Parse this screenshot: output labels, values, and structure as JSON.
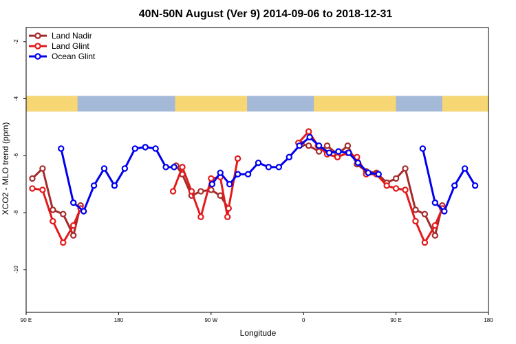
{
  "chart_data": {
    "type": "line",
    "title": "40N-50N August (Ver 9)   2014-09-06 to 2018-12-31",
    "xlabel": "Longitude",
    "ylabel": "XCO2 - MLO trend (ppm)",
    "x_ticks": [
      {
        "value": 90,
        "label": "90 E"
      },
      {
        "value": 180,
        "label": "180"
      },
      {
        "value": 270,
        "label": "90 W"
      },
      {
        "value": 360,
        "label": "0"
      },
      {
        "value": 450,
        "label": "90 E"
      },
      {
        "value": 540,
        "label": "180"
      }
    ],
    "y_ticks": [
      {
        "value": -2,
        "label": "-2"
      },
      {
        "value": -4,
        "label": "-4"
      },
      {
        "value": -6,
        "label": "-6"
      },
      {
        "value": -8,
        "label": "-8"
      },
      {
        "value": -10,
        "label": "-10"
      }
    ],
    "xlim": [
      90,
      540
    ],
    "ylim": [
      -11.5,
      -1.5
    ],
    "legend_position": "top-left",
    "map_strip": {
      "y_top": -3.9,
      "y_bottom": -4.45,
      "land_color": "#f7d774",
      "ocean_color": "#a4b8d8",
      "land_ranges": [
        [
          90,
          140
        ],
        [
          235,
          305
        ],
        [
          370,
          450
        ],
        [
          495,
          540
        ]
      ]
    },
    "series": [
      {
        "name": "Land Nadir",
        "color": "#a52a2a",
        "points": [
          [
            96,
            -6.8
          ],
          [
            106,
            -6.45
          ],
          [
            116,
            -7.9
          ],
          [
            126,
            -8.05
          ],
          [
            136,
            -8.8
          ],
          [
            143,
            -7.75
          ],
          [
            null,
            null
          ],
          [
            236,
            -6.35
          ],
          [
            242,
            -6.65
          ],
          [
            251,
            -7.4
          ],
          [
            260,
            -7.25
          ],
          [
            270,
            -7.2
          ],
          [
            279,
            -7.4
          ],
          [
            287,
            -7.85
          ],
          [
            null,
            null
          ],
          [
            358,
            -5.6
          ],
          [
            365,
            -5.65
          ],
          [
            375,
            -5.85
          ],
          [
            383,
            -5.65
          ],
          [
            393,
            -5.95
          ],
          [
            403,
            -5.65
          ],
          [
            412,
            -6.3
          ],
          [
            421,
            -6.55
          ],
          [
            431,
            -6.6
          ],
          [
            441,
            -6.95
          ],
          [
            450,
            -6.8
          ],
          [
            459,
            -6.45
          ],
          [
            469,
            -7.9
          ],
          [
            478,
            -8.05
          ],
          [
            488,
            -8.8
          ],
          [
            495,
            -7.75
          ]
        ]
      },
      {
        "name": "Land Glint",
        "color": "#e31a1c",
        "points": [
          [
            96,
            -7.15
          ],
          [
            106,
            -7.2
          ],
          [
            116,
            -8.3
          ],
          [
            126,
            -9.05
          ],
          [
            136,
            -8.45
          ],
          [
            143,
            -7.85
          ],
          [
            null,
            null
          ],
          [
            233,
            -7.25
          ],
          [
            242,
            -6.4
          ],
          [
            251,
            -7.25
          ],
          [
            260,
            -8.15
          ],
          [
            270,
            -6.8
          ],
          [
            279,
            -6.75
          ],
          [
            286,
            -8.15
          ],
          [
            287,
            -7.85
          ],
          [
            296,
            -6.1
          ],
          [
            null,
            null
          ],
          [
            355,
            -5.55
          ],
          [
            365,
            -5.15
          ],
          [
            374,
            -5.65
          ],
          [
            383,
            -5.95
          ],
          [
            393,
            -6.05
          ],
          [
            403,
            -5.9
          ],
          [
            412,
            -6.05
          ],
          [
            421,
            -6.65
          ],
          [
            431,
            -6.65
          ],
          [
            441,
            -7.05
          ],
          [
            450,
            -7.15
          ],
          [
            459,
            -7.2
          ],
          [
            469,
            -8.3
          ],
          [
            478,
            -9.05
          ],
          [
            488,
            -8.45
          ],
          [
            495,
            -7.85
          ]
        ]
      },
      {
        "name": "Ocean Glint",
        "color": "#0000ee",
        "points": [
          [
            124,
            -5.75
          ],
          [
            136,
            -7.65
          ],
          [
            146,
            -7.95
          ],
          [
            156,
            -7.05
          ],
          [
            166,
            -6.45
          ],
          [
            176,
            -7.05
          ],
          [
            186,
            -6.45
          ],
          [
            196,
            -5.75
          ],
          [
            206,
            -5.7
          ],
          [
            216,
            -5.75
          ],
          [
            226,
            -6.4
          ],
          [
            234,
            -6.4
          ],
          [
            null,
            null
          ],
          [
            271,
            -7.0
          ],
          [
            279,
            -6.6
          ],
          [
            288,
            -7.0
          ],
          [
            296,
            -6.65
          ],
          [
            306,
            -6.65
          ],
          [
            316,
            -6.25
          ],
          [
            326,
            -6.4
          ],
          [
            336,
            -6.4
          ],
          [
            346,
            -6.05
          ],
          [
            356,
            -5.65
          ],
          [
            366,
            -5.35
          ],
          [
            375,
            -5.65
          ],
          [
            385,
            -5.9
          ],
          [
            394,
            -5.85
          ],
          [
            404,
            -5.9
          ],
          [
            413,
            -6.25
          ],
          [
            423,
            -6.6
          ],
          [
            433,
            -6.65
          ],
          [
            null,
            null
          ],
          [
            476,
            -5.75
          ],
          [
            488,
            -7.65
          ],
          [
            497,
            -7.95
          ],
          [
            507,
            -7.05
          ],
          [
            517,
            -6.45
          ],
          [
            527,
            -7.05
          ]
        ]
      }
    ]
  }
}
